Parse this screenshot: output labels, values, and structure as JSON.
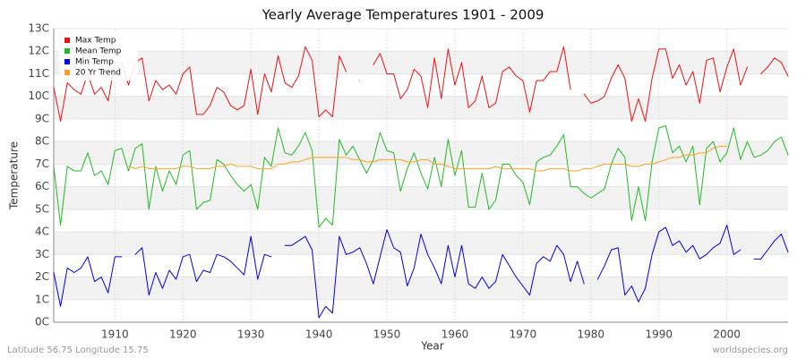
{
  "chart_data": {
    "type": "line",
    "title": "Yearly Average Temperatures 1901 - 2009",
    "x_label": "Year",
    "y_label": "Temperature",
    "footer_left": "Latitude 56.75 Longitude 15.75",
    "footer_right": "worldspecies.org",
    "legend": "top-left",
    "grid": true,
    "xlim": [
      1901,
      2009
    ],
    "xticks": [
      1910,
      1920,
      1930,
      1940,
      1950,
      1960,
      1970,
      1980,
      1990,
      2000
    ],
    "ylim": [
      0,
      13
    ],
    "yticks": [
      {
        "value": 0,
        "label": "0C"
      },
      {
        "value": 1,
        "label": "1C"
      },
      {
        "value": 2,
        "label": "2C"
      },
      {
        "value": 3,
        "label": "3C"
      },
      {
        "value": 4,
        "label": "4C"
      },
      {
        "value": 5,
        "label": "5C"
      },
      {
        "value": 6,
        "label": "6C"
      },
      {
        "value": 7,
        "label": "7C"
      },
      {
        "value": 8,
        "label": "8C"
      },
      {
        "value": 9,
        "label": "9C"
      },
      {
        "value": 10,
        "label": "10C"
      },
      {
        "value": 11,
        "label": "11C"
      },
      {
        "value": 12,
        "label": "12C"
      },
      {
        "value": 13,
        "label": "13C"
      }
    ],
    "x": [
      1901,
      1902,
      1903,
      1904,
      1905,
      1906,
      1907,
      1908,
      1909,
      1910,
      1911,
      1912,
      1913,
      1914,
      1915,
      1916,
      1917,
      1918,
      1919,
      1920,
      1921,
      1922,
      1923,
      1924,
      1925,
      1926,
      1927,
      1928,
      1929,
      1930,
      1931,
      1932,
      1933,
      1934,
      1935,
      1936,
      1937,
      1938,
      1939,
      1940,
      1941,
      1942,
      1943,
      1944,
      1945,
      1946,
      1947,
      1948,
      1949,
      1950,
      1951,
      1952,
      1953,
      1954,
      1955,
      1956,
      1957,
      1958,
      1959,
      1960,
      1961,
      1962,
      1963,
      1964,
      1965,
      1966,
      1967,
      1968,
      1969,
      1970,
      1971,
      1972,
      1973,
      1974,
      1975,
      1976,
      1977,
      1978,
      1979,
      1980,
      1981,
      1982,
      1983,
      1984,
      1985,
      1986,
      1987,
      1988,
      1989,
      1990,
      1991,
      1992,
      1993,
      1994,
      1995,
      1996,
      1997,
      1998,
      1999,
      2000,
      2001,
      2002,
      2003,
      2004,
      2005,
      2006,
      2007,
      2008,
      2009
    ],
    "series": [
      {
        "name": "Max Temp",
        "color": "#ee1111",
        "values": [
          10.4,
          8.9,
          10.6,
          10.3,
          10.1,
          11.0,
          10.1,
          10.4,
          9.8,
          11.5,
          11.5,
          10.5,
          11.5,
          11.7,
          9.8,
          10.7,
          10.3,
          10.5,
          10.1,
          11.0,
          11.3,
          9.2,
          9.2,
          9.6,
          10.4,
          10.2,
          9.6,
          9.4,
          9.6,
          11.2,
          9.2,
          11.0,
          10.2,
          11.8,
          10.6,
          10.4,
          10.9,
          12.2,
          11.6,
          9.1,
          9.4,
          9.1,
          11.8,
          11.1,
          null,
          10.7,
          null,
          11.4,
          11.9,
          11.0,
          11.0,
          9.9,
          10.3,
          11.2,
          10.9,
          9.5,
          11.7,
          9.9,
          12.1,
          10.5,
          11.5,
          9.5,
          9.8,
          10.9,
          9.5,
          9.7,
          11.1,
          11.3,
          10.9,
          10.7,
          9.3,
          10.7,
          10.7,
          11.1,
          11.1,
          12.2,
          10.3,
          null,
          10.1,
          9.7,
          9.8,
          10.0,
          10.8,
          11.4,
          10.8,
          8.9,
          9.9,
          8.9,
          10.8,
          12.1,
          12.1,
          10.8,
          11.4,
          10.5,
          11.1,
          9.7,
          11.6,
          11.7,
          10.2,
          11.3,
          12.1,
          10.5,
          11.3,
          null,
          11.0,
          11.3,
          11.7,
          11.5,
          10.9
        ]
      },
      {
        "name": "Mean Temp",
        "color": "#22bb22",
        "values": [
          6.9,
          4.3,
          6.9,
          6.7,
          6.7,
          7.5,
          6.5,
          6.7,
          6.1,
          7.6,
          7.7,
          6.7,
          7.7,
          7.9,
          5.0,
          6.9,
          5.8,
          6.7,
          6.1,
          7.4,
          7.6,
          5.0,
          5.3,
          5.4,
          7.2,
          7.0,
          6.5,
          6.1,
          5.8,
          6.1,
          5.0,
          7.3,
          6.9,
          8.6,
          7.5,
          7.4,
          7.8,
          8.4,
          7.6,
          4.2,
          4.6,
          4.3,
          8.1,
          7.4,
          7.8,
          7.2,
          6.6,
          7.2,
          8.4,
          7.6,
          7.5,
          5.8,
          6.8,
          7.5,
          6.6,
          5.9,
          7.3,
          6.0,
          8.1,
          6.5,
          7.6,
          5.1,
          5.1,
          6.6,
          5.0,
          5.4,
          7.0,
          7.0,
          6.5,
          6.2,
          5.2,
          7.1,
          7.3,
          7.4,
          7.8,
          8.3,
          6.0,
          6.0,
          5.7,
          5.5,
          5.7,
          5.9,
          7.0,
          7.7,
          7.3,
          4.5,
          6.0,
          4.5,
          7.1,
          8.6,
          8.7,
          7.5,
          7.8,
          7.1,
          7.8,
          5.2,
          7.7,
          8.0,
          7.1,
          7.5,
          8.6,
          7.2,
          8.0,
          7.3,
          7.4,
          7.6,
          8.0,
          8.2,
          7.4
        ]
      },
      {
        "name": "Min Temp",
        "color": "#0000dd",
        "values": [
          2.2,
          0.7,
          2.4,
          2.2,
          2.4,
          2.9,
          1.8,
          2.0,
          1.3,
          2.9,
          2.9,
          null,
          3.0,
          3.3,
          1.2,
          2.2,
          1.5,
          2.3,
          1.9,
          2.9,
          3.0,
          1.8,
          2.3,
          2.2,
          3.0,
          2.9,
          2.7,
          2.4,
          2.1,
          3.8,
          1.9,
          3.0,
          2.9,
          null,
          3.4,
          3.4,
          3.6,
          3.8,
          3.2,
          0.2,
          0.7,
          0.4,
          3.8,
          3.0,
          3.1,
          3.3,
          2.6,
          1.7,
          2.9,
          4.1,
          3.3,
          3.1,
          1.6,
          2.4,
          3.9,
          3.0,
          2.4,
          1.7,
          3.4,
          2.0,
          3.4,
          1.7,
          1.5,
          2.0,
          1.5,
          1.8,
          3.0,
          2.5,
          2.0,
          1.6,
          1.2,
          2.6,
          2.9,
          2.7,
          3.4,
          3.0,
          1.8,
          2.7,
          1.7,
          null,
          1.9,
          2.5,
          3.2,
          3.3,
          1.2,
          1.6,
          0.9,
          1.5,
          3.0,
          4.0,
          4.2,
          3.4,
          3.6,
          3.1,
          3.4,
          2.8,
          3.0,
          3.3,
          3.5,
          4.3,
          3.0,
          3.2,
          null,
          2.8,
          2.8,
          3.2,
          3.6,
          3.9,
          3.1
        ]
      },
      {
        "name": "20 Yr Trend",
        "color": "#ffa020",
        "values": [
          null,
          null,
          null,
          null,
          null,
          null,
          null,
          null,
          null,
          null,
          null,
          6.9,
          6.8,
          6.9,
          6.8,
          6.8,
          6.8,
          6.8,
          6.8,
          6.9,
          6.9,
          6.8,
          6.8,
          6.8,
          6.9,
          6.9,
          7.0,
          6.9,
          6.9,
          6.9,
          6.8,
          6.8,
          6.8,
          7.0,
          7.0,
          7.1,
          7.1,
          7.2,
          7.3,
          7.3,
          7.3,
          7.3,
          7.3,
          7.3,
          7.2,
          7.2,
          7.1,
          7.1,
          7.2,
          7.2,
          7.2,
          7.2,
          7.1,
          7.1,
          7.2,
          7.2,
          7.0,
          7.0,
          6.9,
          6.8,
          6.8,
          6.8,
          6.8,
          6.8,
          6.8,
          6.9,
          6.8,
          6.8,
          6.8,
          6.8,
          6.8,
          6.7,
          6.7,
          6.8,
          6.8,
          6.8,
          6.7,
          6.7,
          6.8,
          6.8,
          6.9,
          7.0,
          7.0,
          7.0,
          7.0,
          6.9,
          6.9,
          7.0,
          7.0,
          7.1,
          7.2,
          7.3,
          7.3,
          7.4,
          7.4,
          7.5,
          7.5,
          7.7,
          7.8,
          7.8,
          null,
          null,
          null,
          null,
          null,
          null,
          null,
          null,
          null
        ]
      }
    ]
  }
}
